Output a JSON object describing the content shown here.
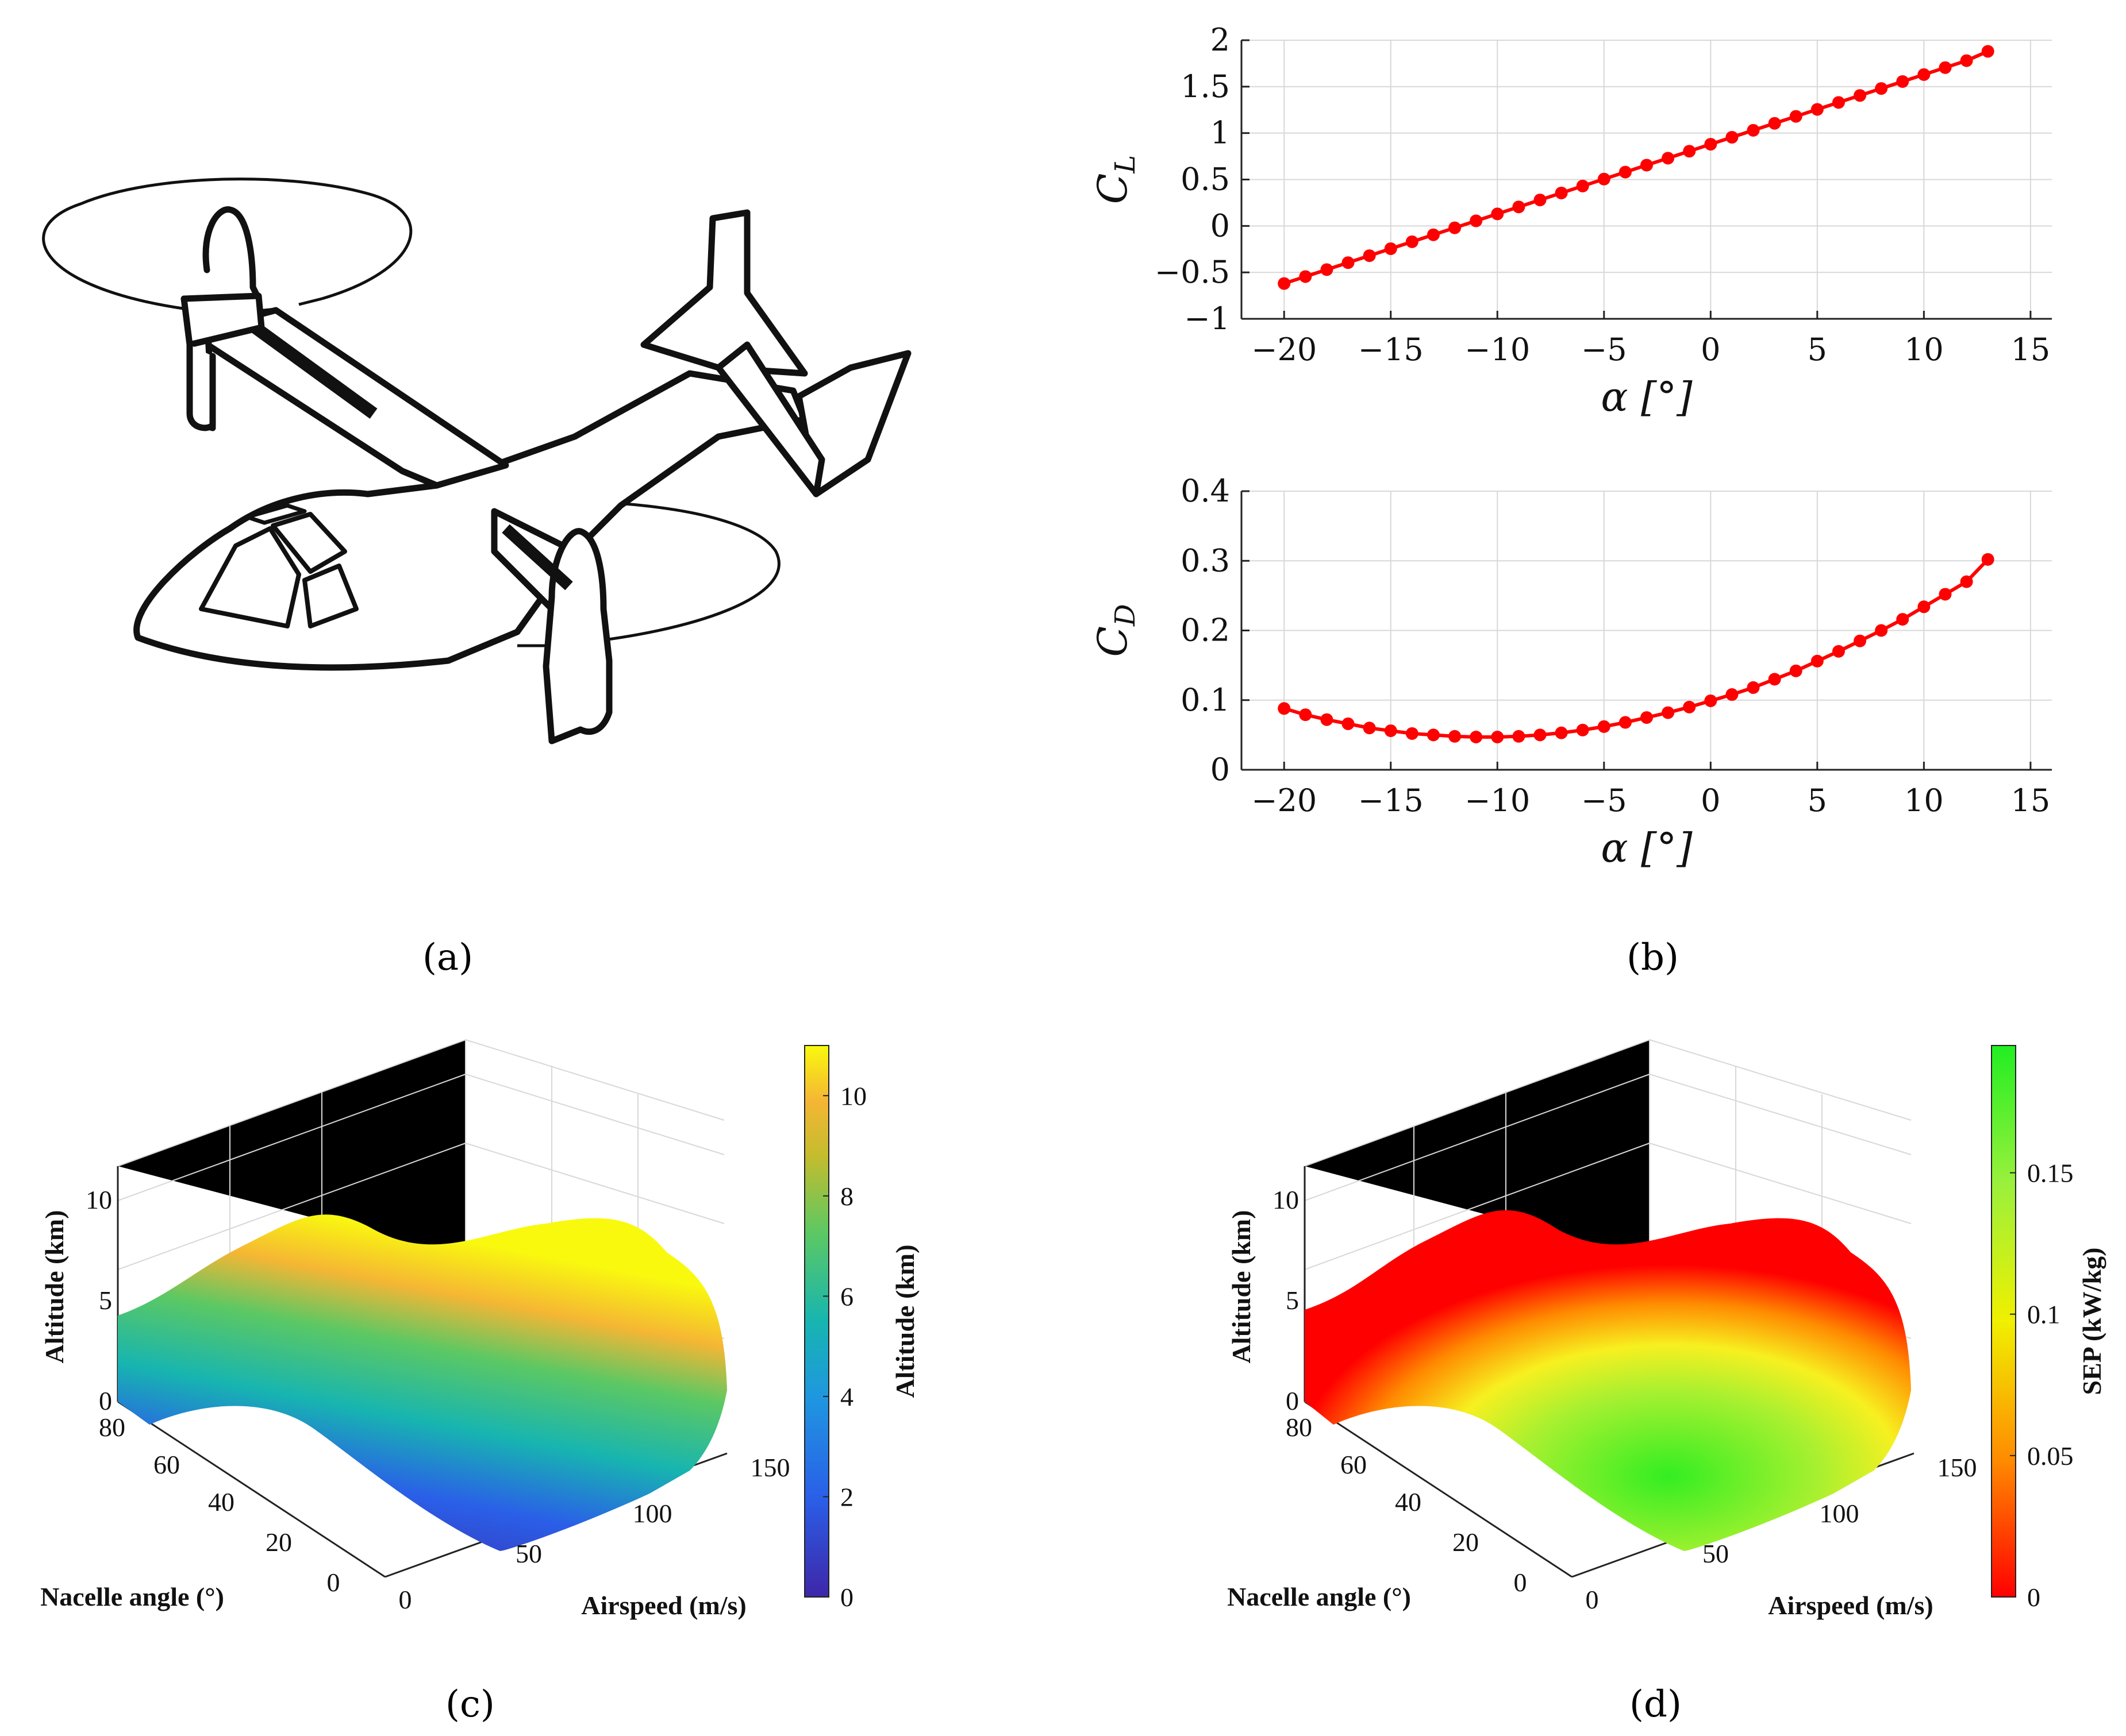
{
  "labels": {
    "a": "(a)",
    "b": "(b)",
    "c": "(c)",
    "d": "(d)"
  },
  "chart_data": [
    {
      "id": "cl",
      "type": "line",
      "xlabel": "α [°]",
      "ylabel": "C_L",
      "xlim": [
        -22,
        16
      ],
      "ylim": [
        -1,
        2
      ],
      "xticks": [
        "−20",
        "−15",
        "−10",
        "−5",
        "0",
        "5",
        "10",
        "15"
      ],
      "yticks": [
        "−1",
        "−0.5",
        "0",
        "0.5",
        "1",
        "1.5",
        "2"
      ],
      "grid": true,
      "color": "#ff0000",
      "x": [
        -20,
        -19,
        -18,
        -17,
        -16,
        -15,
        -14,
        -13,
        -12,
        -11,
        -10,
        -9,
        -8,
        -7,
        -6,
        -5,
        -4,
        -3,
        -2,
        -1,
        0,
        1,
        2,
        3,
        4,
        5,
        6,
        7,
        8,
        9,
        10,
        11,
        12,
        13
      ],
      "y": [
        -0.62,
        -0.545,
        -0.47,
        -0.395,
        -0.32,
        -0.245,
        -0.17,
        -0.095,
        -0.02,
        0.055,
        0.13,
        0.205,
        0.28,
        0.355,
        0.43,
        0.505,
        0.58,
        0.655,
        0.73,
        0.805,
        0.88,
        0.955,
        1.03,
        1.105,
        1.18,
        1.255,
        1.33,
        1.405,
        1.48,
        1.555,
        1.63,
        1.705,
        1.78,
        1.88
      ]
    },
    {
      "id": "cd",
      "type": "line",
      "xlabel": "α [°]",
      "ylabel": "C_D",
      "xlim": [
        -22,
        16
      ],
      "ylim": [
        0,
        0.4
      ],
      "xticks": [
        "−20",
        "−15",
        "−10",
        "−5",
        "0",
        "5",
        "10",
        "15"
      ],
      "yticks": [
        "0",
        "0.1",
        "0.2",
        "0.3",
        "0.4"
      ],
      "grid": true,
      "color": "#ff0000",
      "x": [
        -20,
        -19,
        -18,
        -17,
        -16,
        -15,
        -14,
        -13,
        -12,
        -11,
        -10,
        -9,
        -8,
        -7,
        -6,
        -5,
        -4,
        -3,
        -2,
        -1,
        0,
        1,
        2,
        3,
        4,
        5,
        6,
        7,
        8,
        9,
        10,
        11,
        12,
        13
      ],
      "y": [
        0.088,
        0.079,
        0.072,
        0.066,
        0.06,
        0.056,
        0.052,
        0.05,
        0.048,
        0.047,
        0.047,
        0.048,
        0.05,
        0.053,
        0.057,
        0.062,
        0.068,
        0.075,
        0.082,
        0.09,
        0.099,
        0.108,
        0.118,
        0.13,
        0.142,
        0.156,
        0.17,
        0.185,
        0.2,
        0.216,
        0.234,
        0.252,
        0.27,
        0.302
      ]
    },
    {
      "id": "alt3d",
      "type": "surface3d",
      "zlabel": "Altitude (km)",
      "xlabel": "Airspeed (m/s)",
      "ylabel": "Nacelle angle (°)",
      "zticks": [
        "0",
        "5",
        "10"
      ],
      "xticks": [
        "0",
        "50",
        "100",
        "150"
      ],
      "yticks": [
        "0",
        "20",
        "40",
        "60",
        "80"
      ],
      "colorbar_label": "Altitude (km)",
      "colorbar_ticks": [
        "0",
        "2",
        "4",
        "6",
        "8",
        "10"
      ],
      "colorbar_range": [
        0,
        11
      ],
      "colormap": [
        "#3e26a8",
        "#2a5fe8",
        "#1f96e0",
        "#17b5b0",
        "#5cc863",
        "#c4bc2e",
        "#f5b634",
        "#f9f90e"
      ]
    },
    {
      "id": "sep3d",
      "type": "surface3d",
      "zlabel": "Altitude (km)",
      "xlabel": "Airspeed (m/s)",
      "ylabel": "Nacelle angle (°)",
      "zticks": [
        "0",
        "5",
        "10"
      ],
      "xticks": [
        "0",
        "50",
        "100",
        "150"
      ],
      "yticks": [
        "0",
        "20",
        "40",
        "60",
        "80"
      ],
      "colorbar_label": "SEP (kW/kg)",
      "colorbar_ticks": [
        "0",
        "0.05",
        "0.1",
        "0.15"
      ],
      "colorbar_range": [
        0,
        0.195
      ],
      "colormap": [
        "#ff0000",
        "#ff8c00",
        "#f0f000",
        "#9af03c",
        "#22ee22"
      ]
    }
  ]
}
